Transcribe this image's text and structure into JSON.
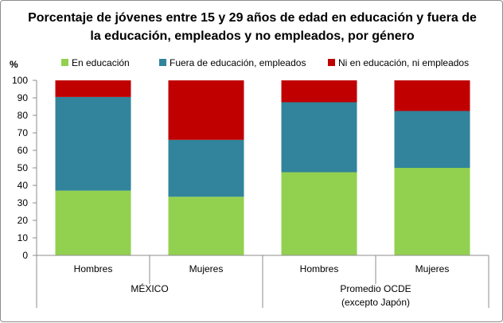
{
  "chart_data": {
    "type": "bar",
    "stacked": true,
    "title_lines": [
      "Porcentaje de jóvenes entre 15 y 29 años de edad en educación y fuera de",
      "la educación, empleados y no empleados, por género"
    ],
    "ylabel": "%",
    "ylim": [
      0,
      100
    ],
    "yticks": [
      0,
      10,
      20,
      30,
      40,
      50,
      60,
      70,
      80,
      90,
      100
    ],
    "categories": [
      "Hombres",
      "Mujeres",
      "Hombres",
      "Mujeres"
    ],
    "groups": [
      {
        "label_lines": [
          "MÉXICO"
        ],
        "categories": [
          0,
          1
        ]
      },
      {
        "label_lines": [
          "Promedio OCDE",
          "(excepto Japón)"
        ],
        "categories": [
          2,
          3
        ]
      }
    ],
    "legend_position": "top",
    "series": [
      {
        "name": "En educación",
        "color": "#92d050",
        "values": [
          37,
          33.5,
          47.5,
          50
        ]
      },
      {
        "name": "Fuera de educación, empleados",
        "color": "#31849b",
        "values": [
          53.5,
          32.5,
          40,
          32.5
        ]
      },
      {
        "name": "Ni en educación, ni empleados",
        "color": "#c00000",
        "values": [
          9.5,
          34,
          12.5,
          17.5
        ]
      }
    ]
  }
}
